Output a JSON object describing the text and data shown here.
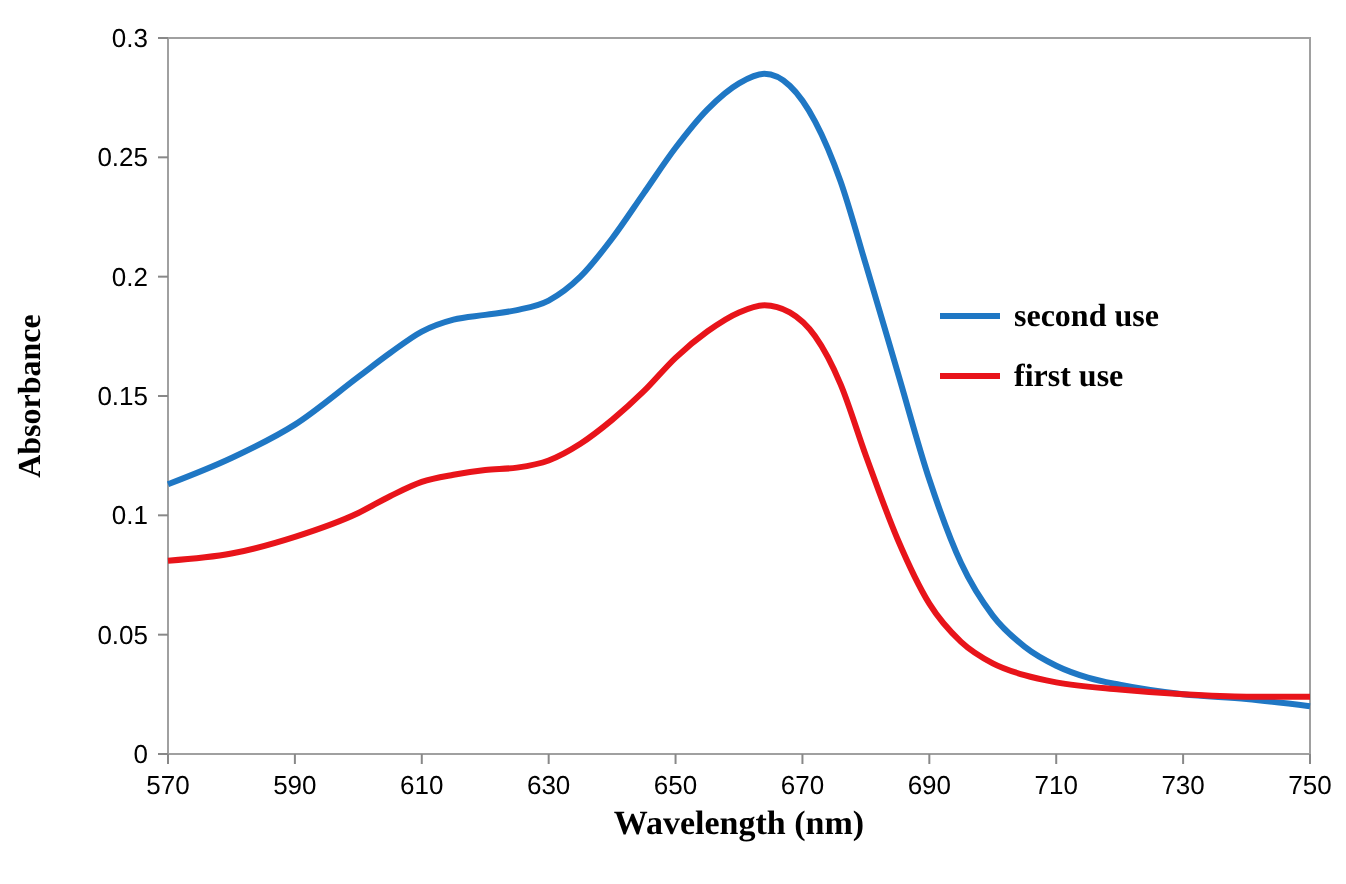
{
  "chart_data": {
    "type": "line",
    "xlabel": "Wavelength (nm)",
    "ylabel": "Absorbance",
    "xlim": [
      570,
      750
    ],
    "xticks": [
      570,
      590,
      610,
      630,
      650,
      670,
      690,
      710,
      730,
      750
    ],
    "ylim": [
      0,
      0.3
    ],
    "yticks": [
      0,
      0.05,
      0.1,
      0.15,
      0.2,
      0.25,
      0.3
    ],
    "grid": false,
    "legend": "right",
    "marker": "none",
    "line_style": "solid",
    "series": [
      {
        "name": "second use",
        "color": "#1f77c4",
        "x": [
          570,
          580,
          590,
          600,
          605,
          610,
          615,
          620,
          625,
          630,
          635,
          640,
          645,
          650,
          655,
          660,
          664,
          668,
          672,
          676,
          680,
          685,
          690,
          695,
          700,
          705,
          710,
          715,
          720,
          730,
          740,
          750
        ],
        "values": [
          0.113,
          0.124,
          0.138,
          0.158,
          0.168,
          0.177,
          0.182,
          0.184,
          0.186,
          0.19,
          0.2,
          0.216,
          0.235,
          0.254,
          0.27,
          0.281,
          0.285,
          0.28,
          0.265,
          0.24,
          0.205,
          0.16,
          0.115,
          0.08,
          0.058,
          0.045,
          0.037,
          0.032,
          0.029,
          0.025,
          0.023,
          0.02
        ]
      },
      {
        "name": "first use",
        "color": "#e8141a",
        "x": [
          570,
          580,
          590,
          600,
          605,
          610,
          615,
          620,
          625,
          630,
          635,
          640,
          645,
          650,
          655,
          660,
          664,
          668,
          672,
          676,
          680,
          685,
          690,
          695,
          700,
          705,
          710,
          720,
          730,
          740,
          750
        ],
        "values": [
          0.081,
          0.084,
          0.091,
          0.101,
          0.108,
          0.114,
          0.117,
          0.119,
          0.12,
          0.123,
          0.13,
          0.14,
          0.152,
          0.166,
          0.177,
          0.185,
          0.188,
          0.185,
          0.175,
          0.155,
          0.125,
          0.09,
          0.063,
          0.047,
          0.038,
          0.033,
          0.03,
          0.027,
          0.025,
          0.024,
          0.024
        ]
      }
    ]
  }
}
